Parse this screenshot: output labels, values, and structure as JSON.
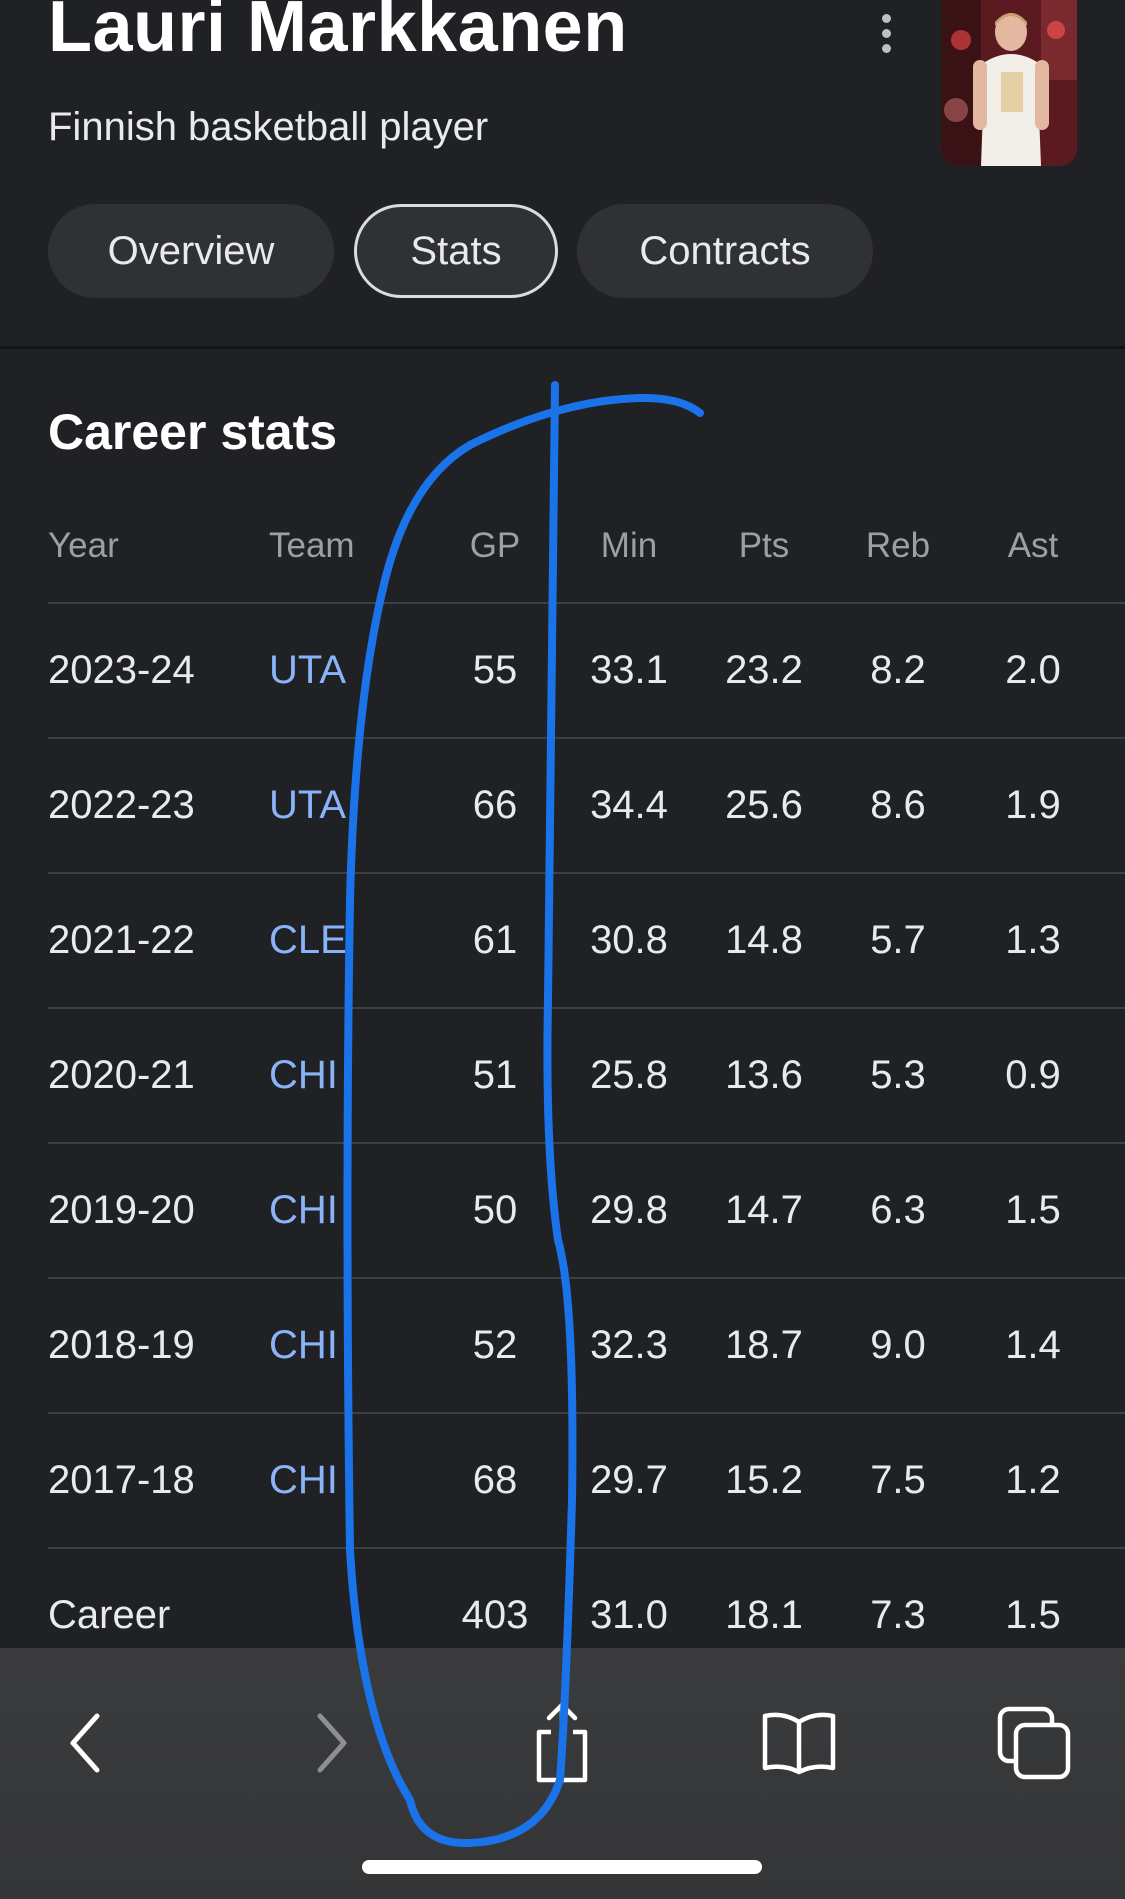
{
  "header": {
    "title": "Lauri Markkanen",
    "subtitle": "Finnish basketball player",
    "menu_icon": "more-vert-icon",
    "thumbnail_icon": "player-photo"
  },
  "tabs": [
    {
      "label": "Overview",
      "active": false
    },
    {
      "label": "Stats",
      "active": true
    },
    {
      "label": "Contracts",
      "active": false
    }
  ],
  "career_stats": {
    "title": "Career stats",
    "columns": [
      "Year",
      "Team",
      "GP",
      "Min",
      "Pts",
      "Reb",
      "Ast"
    ],
    "rows": [
      {
        "year": "2023-24",
        "team": "UTA",
        "gp": "55",
        "min": "33.1",
        "pts": "23.2",
        "reb": "8.2",
        "ast": "2.0"
      },
      {
        "year": "2022-23",
        "team": "UTA",
        "gp": "66",
        "min": "34.4",
        "pts": "25.6",
        "reb": "8.6",
        "ast": "1.9"
      },
      {
        "year": "2021-22",
        "team": "CLE",
        "gp": "61",
        "min": "30.8",
        "pts": "14.8",
        "reb": "5.7",
        "ast": "1.3"
      },
      {
        "year": "2020-21",
        "team": "CHI",
        "gp": "51",
        "min": "25.8",
        "pts": "13.6",
        "reb": "5.3",
        "ast": "0.9"
      },
      {
        "year": "2019-20",
        "team": "CHI",
        "gp": "50",
        "min": "29.8",
        "pts": "14.7",
        "reb": "6.3",
        "ast": "1.5"
      },
      {
        "year": "2018-19",
        "team": "CHI",
        "gp": "52",
        "min": "32.3",
        "pts": "18.7",
        "reb": "9.0",
        "ast": "1.4"
      },
      {
        "year": "2017-18",
        "team": "CHI",
        "gp": "68",
        "min": "29.7",
        "pts": "15.2",
        "reb": "7.5",
        "ast": "1.2"
      }
    ],
    "career": {
      "label": "Career",
      "gp": "403",
      "min": "31.0",
      "pts": "18.1",
      "reb": "7.3",
      "ast": "1.5"
    }
  },
  "toolbar": {
    "back_icon": "chevron-left-icon",
    "forward_icon": "chevron-right-icon",
    "share_icon": "share-icon",
    "bookmarks_icon": "book-icon",
    "tabs_icon": "tabs-icon"
  },
  "colors": {
    "background": "#202124",
    "team_link": "#8ab4f8",
    "annotation": "#1a73e8"
  }
}
